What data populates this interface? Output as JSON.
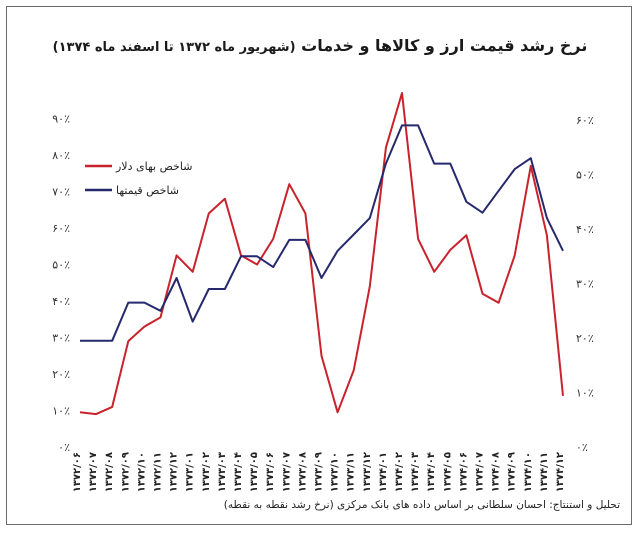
{
  "chart_data": {
    "type": "line",
    "title": "نرخ رشد قیمت ارز و کالاها و خدمات",
    "subtitle": "(شهریور ماه ۱۳۷۲ تا اسفند ماه ۱۳۷۴)",
    "source_note": "تحلیل و استنتاج: احسان سلطانی بر اساس داده های بانک مرکزی (نرخ رشد نقطه به نقطه)",
    "categories": [
      "۱۳۷۲/۰۶",
      "۱۳۷۲/۰۷",
      "۱۳۷۲/۰۸",
      "۱۳۷۲/۰۹",
      "۱۳۷۲/۱۰",
      "۱۳۷۲/۱۱",
      "۱۳۷۲/۱۲",
      "۱۳۷۳/۰۱",
      "۱۳۷۳/۰۲",
      "۱۳۷۳/۰۳",
      "۱۳۷۳/۰۴",
      "۱۳۷۳/۰۵",
      "۱۳۷۳/۰۶",
      "۱۳۷۳/۰۷",
      "۱۳۷۳/۰۸",
      "۱۳۷۳/۰۹",
      "۱۳۷۳/۱۰",
      "۱۳۷۳/۱۱",
      "۱۳۷۳/۱۲",
      "۱۳۷۴/۰۱",
      "۱۳۷۴/۰۲",
      "۱۳۷۴/۰۳",
      "۱۳۷۴/۰۴",
      "۱۳۷۴/۰۵",
      "۱۳۷۴/۰۶",
      "۱۳۷۴/۰۷",
      "۱۳۷۴/۰۸",
      "۱۳۷۴/۰۹",
      "۱۳۷۴/۱۰",
      "۱۳۷۴/۱۱",
      "۱۳۷۴/۱۲"
    ],
    "series": [
      {
        "name": "شاخص بهای دلار",
        "axis": "left",
        "color": "#c8232c",
        "values": [
          9.5,
          9,
          11,
          29,
          33,
          35.5,
          52.5,
          48,
          64,
          68,
          52.5,
          50,
          57,
          72,
          64,
          25,
          9.5,
          21,
          44,
          82,
          97,
          57,
          48,
          54,
          58,
          42,
          39.5,
          52.5,
          77,
          58,
          14
        ]
      },
      {
        "name": "شاخص قیمتها",
        "axis": "right",
        "color": "#26296b",
        "values": [
          19.5,
          19.5,
          19.5,
          26.5,
          26.5,
          25,
          31,
          23,
          29,
          29,
          35,
          35,
          33,
          38,
          38,
          31,
          36,
          39,
          42,
          52,
          59,
          59,
          52,
          52,
          45,
          43,
          47,
          51,
          53,
          42,
          36
        ]
      }
    ],
    "left_axis": {
      "ylim": [
        0,
        95
      ],
      "ticks": [
        0,
        10,
        20,
        30,
        40,
        50,
        60,
        70,
        80,
        90
      ],
      "tick_labels": [
        "۰٪",
        "۱۰٪",
        "۲۰٪",
        "۳۰٪",
        "۴۰٪",
        "۵۰٪",
        "۶۰٪",
        "۷۰٪",
        "۸۰٪",
        "۹۰٪"
      ]
    },
    "right_axis": {
      "ylim": [
        0,
        65
      ],
      "ticks": [
        0,
        10,
        20,
        30,
        40,
        50,
        60
      ],
      "tick_labels": [
        "۰٪",
        "۱۰٪",
        "۲۰٪",
        "۳۰٪",
        "۴۰٪",
        "۵۰٪",
        "۶۰٪"
      ]
    },
    "grid": false,
    "legend_position": "top-left"
  }
}
